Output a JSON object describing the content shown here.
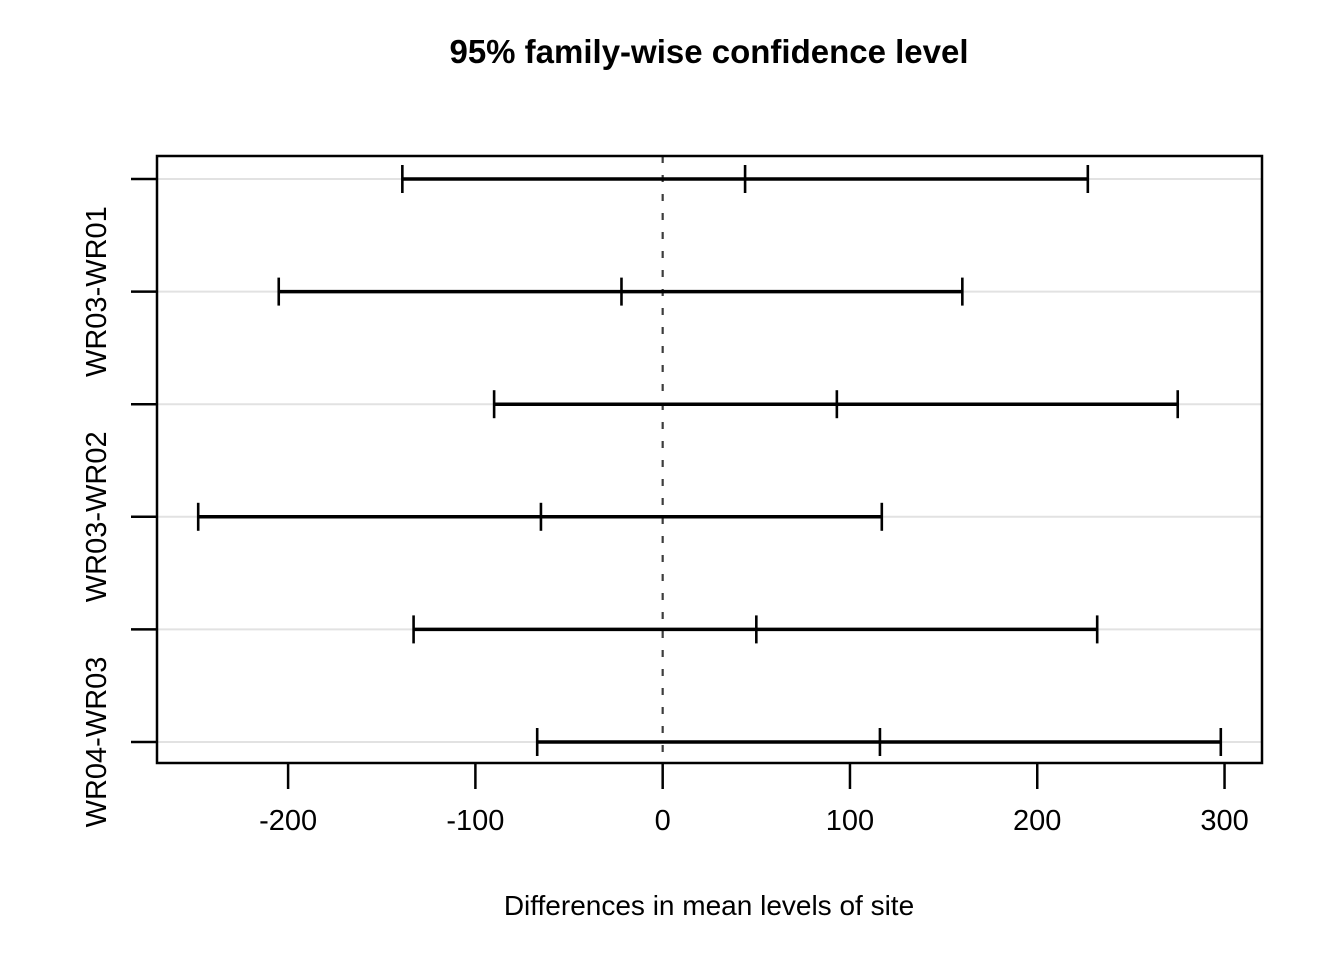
{
  "chart_data": {
    "type": "scatter",
    "variant": "horizontal-confidence-intervals (Tukey HSD)",
    "title": "95% family-wise confidence level",
    "xlabel": "Differences in mean levels of site",
    "ylabel": "",
    "xlim": [
      -270,
      320
    ],
    "x_ticks": [
      -200,
      -100,
      0,
      100,
      200,
      300
    ],
    "zero_reference_line": 0,
    "grid": true,
    "legend": "none",
    "y_axis_label_orientation": "rotated-90-ccw",
    "y_axis_labels_shown": [
      "WR03-WR01",
      "WR03-WR02",
      "WR04-WR03"
    ],
    "intervals": [
      {
        "row": 1,
        "axis_label": "",
        "lower": -139,
        "center": 44,
        "upper": 227
      },
      {
        "row": 2,
        "axis_label": "WR03-WR01",
        "lower": -205,
        "center": -22,
        "upper": 160
      },
      {
        "row": 3,
        "axis_label": "",
        "lower": -90,
        "center": 93,
        "upper": 275
      },
      {
        "row": 4,
        "axis_label": "WR03-WR02",
        "lower": -248,
        "center": -65,
        "upper": 117
      },
      {
        "row": 5,
        "axis_label": "",
        "lower": -133,
        "center": 50,
        "upper": 232
      },
      {
        "row": 6,
        "axis_label": "WR04-WR03",
        "lower": -67,
        "center": 116,
        "upper": 298
      }
    ],
    "colors": {
      "line": "#000000",
      "grid": "#e2e2e2",
      "zero_dash": "#3d3d3d",
      "background": "#ffffff"
    }
  }
}
